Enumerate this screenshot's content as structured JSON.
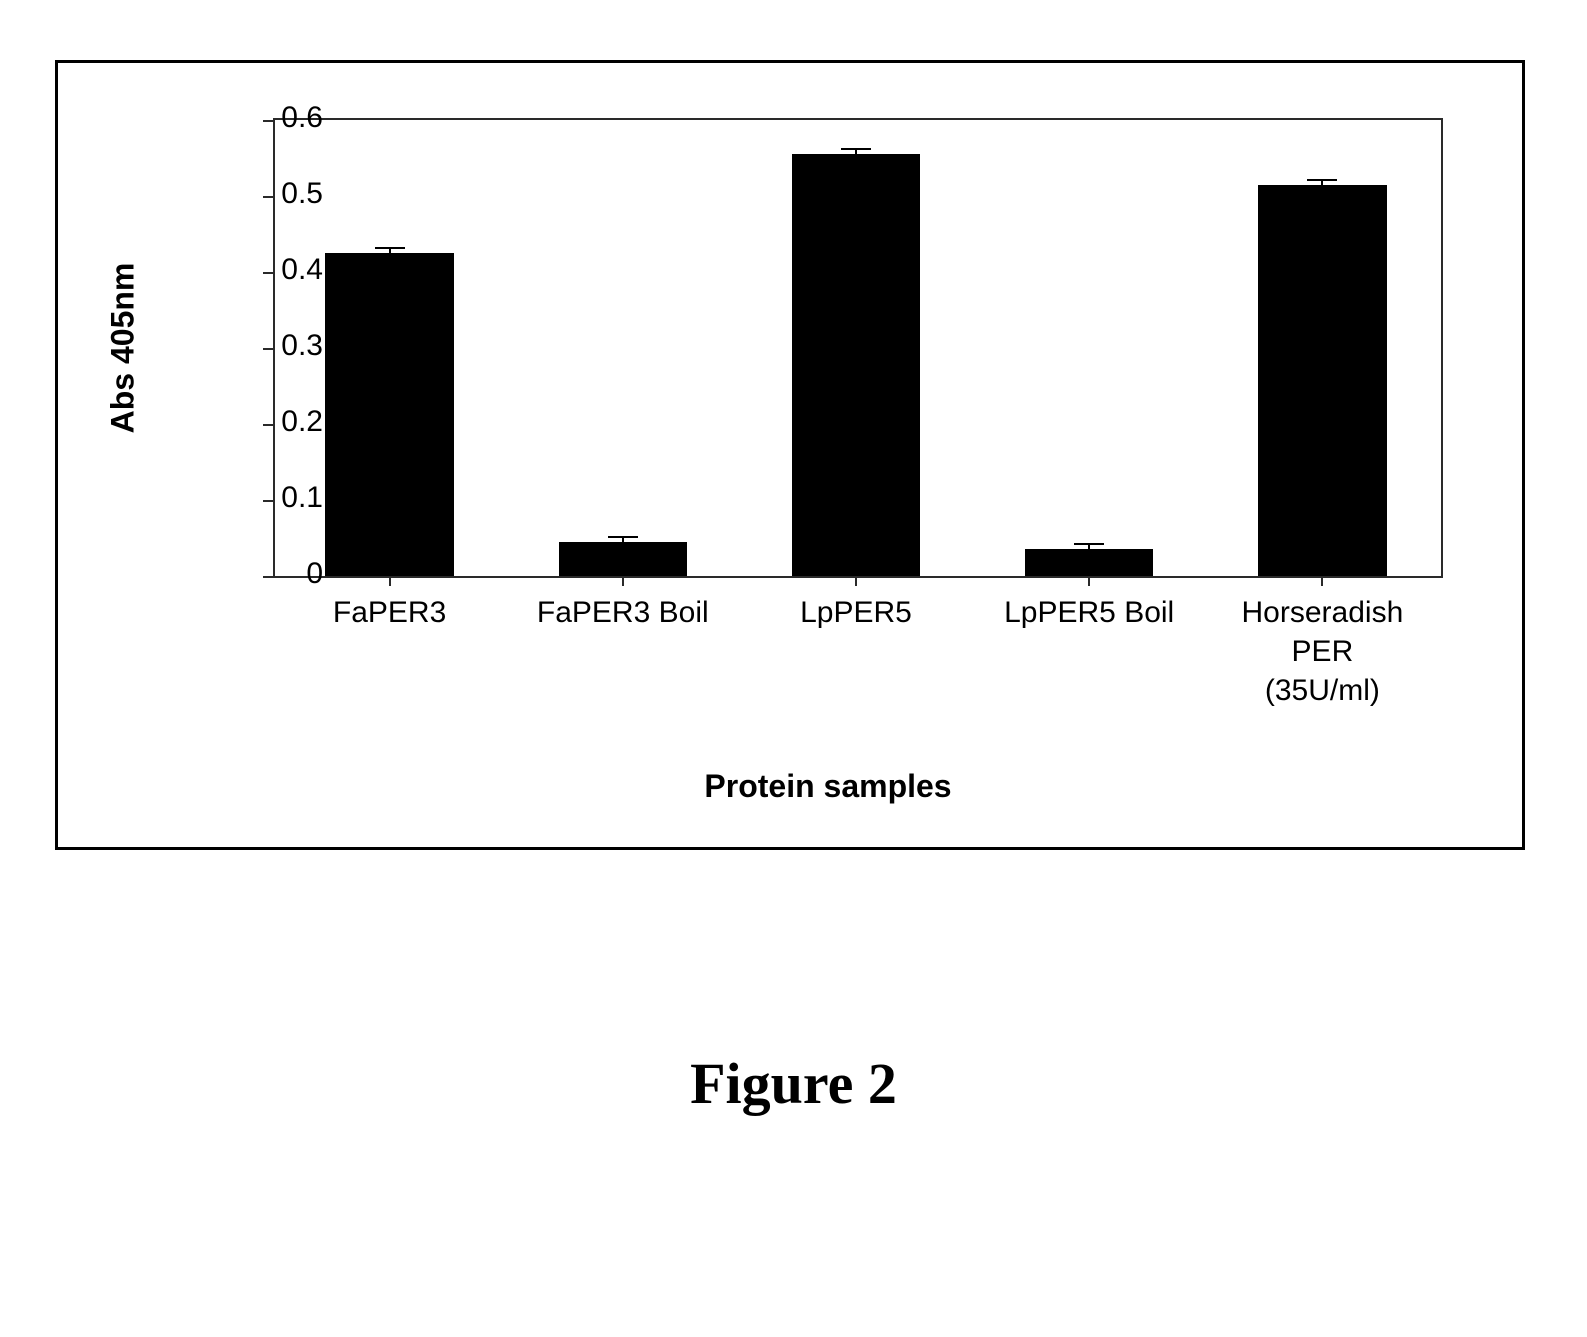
{
  "figure": {
    "caption": "Figure 2",
    "caption_fontsize": 58,
    "caption_fontfamily": "Times New Roman"
  },
  "chart": {
    "type": "bar",
    "ylabel": "Abs 405nm",
    "xlabel": "Protein samples",
    "label_fontsize": 32,
    "tick_fontsize": 30,
    "ylim": [
      0,
      0.6
    ],
    "ytick_step": 0.1,
    "yticks": [
      0,
      0.1,
      0.2,
      0.3,
      0.4,
      0.5,
      0.6
    ],
    "categories": [
      "FaPER3",
      "FaPER3 Boil",
      "LpPER5",
      "LpPER5 Boil",
      "Horseradish\nPER\n(35U/ml)"
    ],
    "values": [
      0.425,
      0.045,
      0.555,
      0.035,
      0.515
    ],
    "errors": [
      0.008,
      0.008,
      0.008,
      0.008,
      0.008
    ],
    "bar_color": "#000000",
    "bar_width": 0.55,
    "background_color": "#ffffff",
    "axis_color": "#2a2a2a",
    "border_color": "#000000",
    "error_cap_width": 30
  }
}
